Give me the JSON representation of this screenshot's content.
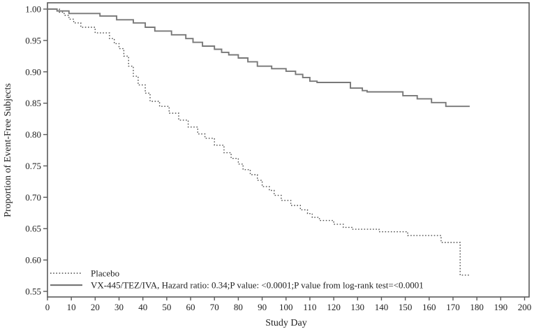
{
  "chart_data": {
    "type": "line",
    "subtype": "kaplan-meier-step",
    "title": "",
    "xlabel": "Study Day",
    "ylabel": "Proportion of Event-Free Subjects",
    "xlim": [
      0,
      200
    ],
    "ylim": [
      0.55,
      1.0
    ],
    "xticks": [
      0,
      10,
      20,
      30,
      40,
      50,
      60,
      70,
      80,
      90,
      100,
      110,
      120,
      130,
      140,
      150,
      160,
      170,
      180,
      190,
      200
    ],
    "yticks": [
      0.55,
      0.6,
      0.65,
      0.7,
      0.75,
      0.8,
      0.85,
      0.9,
      0.95,
      1.0
    ],
    "grid": false,
    "legend_position": "inside-bottom-left",
    "axis_color": "#5a5a5a",
    "series": [
      {
        "name": "Placebo",
        "style": "dotted",
        "color": "#4d4d4d",
        "points": [
          [
            0,
            1.0
          ],
          [
            5,
            0.995
          ],
          [
            7,
            0.99
          ],
          [
            9,
            0.984
          ],
          [
            11,
            0.978
          ],
          [
            14,
            0.971
          ],
          [
            20,
            0.962
          ],
          [
            26,
            0.953
          ],
          [
            28,
            0.945
          ],
          [
            30,
            0.937
          ],
          [
            32,
            0.925
          ],
          [
            34,
            0.909
          ],
          [
            36,
            0.893
          ],
          [
            38,
            0.879
          ],
          [
            41,
            0.866
          ],
          [
            43,
            0.853
          ],
          [
            47,
            0.845
          ],
          [
            51,
            0.834
          ],
          [
            55,
            0.823
          ],
          [
            59,
            0.812
          ],
          [
            63,
            0.801
          ],
          [
            66,
            0.794
          ],
          [
            70,
            0.783
          ],
          [
            74,
            0.771
          ],
          [
            77,
            0.762
          ],
          [
            80,
            0.753
          ],
          [
            82,
            0.744
          ],
          [
            85,
            0.736
          ],
          [
            88,
            0.727
          ],
          [
            90,
            0.717
          ],
          [
            93,
            0.711
          ],
          [
            95,
            0.703
          ],
          [
            98,
            0.695
          ],
          [
            102,
            0.687
          ],
          [
            106,
            0.68
          ],
          [
            109,
            0.674
          ],
          [
            111,
            0.668
          ],
          [
            114,
            0.663
          ],
          [
            120,
            0.657
          ],
          [
            124,
            0.652
          ],
          [
            128,
            0.649
          ],
          [
            139,
            0.645
          ],
          [
            151,
            0.639
          ],
          [
            165,
            0.628
          ],
          [
            173,
            0.576
          ],
          [
            177,
            0.576
          ]
        ]
      },
      {
        "name": "VX-445/TEZ/IVA, Hazard ratio: 0.34;P value: <0.0001;P value from log-rank test=<0.0001",
        "style": "solid",
        "color": "#787878",
        "points": [
          [
            0,
            1.0
          ],
          [
            4,
            0.997
          ],
          [
            9,
            0.993
          ],
          [
            22,
            0.989
          ],
          [
            29,
            0.983
          ],
          [
            36,
            0.978
          ],
          [
            41,
            0.971
          ],
          [
            45,
            0.965
          ],
          [
            52,
            0.959
          ],
          [
            58,
            0.953
          ],
          [
            61,
            0.947
          ],
          [
            65,
            0.941
          ],
          [
            70,
            0.936
          ],
          [
            73,
            0.931
          ],
          [
            76,
            0.927
          ],
          [
            80,
            0.922
          ],
          [
            84,
            0.916
          ],
          [
            88,
            0.909
          ],
          [
            94,
            0.905
          ],
          [
            100,
            0.901
          ],
          [
            104,
            0.896
          ],
          [
            107,
            0.891
          ],
          [
            110,
            0.885
          ],
          [
            113,
            0.883
          ],
          [
            127,
            0.874
          ],
          [
            132,
            0.87
          ],
          [
            134,
            0.868
          ],
          [
            149,
            0.862
          ],
          [
            155,
            0.857
          ],
          [
            161,
            0.851
          ],
          [
            167,
            0.845
          ],
          [
            177,
            0.845
          ]
        ]
      }
    ]
  }
}
